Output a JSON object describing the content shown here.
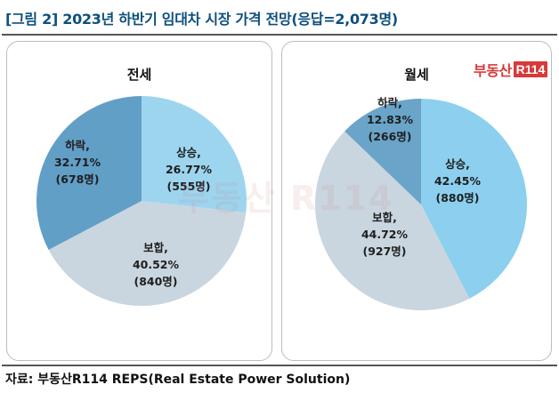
{
  "figure": {
    "title": "[그림 2] 2023년 하반기 임대차 시장 가격 전망(응답=2,073명)",
    "source": "자료: 부동산R114 REPS(Real Estate Power Solution)",
    "logo_text": "부동산",
    "logo_box": "R114",
    "watermark": "부동산 R114"
  },
  "chart_data": [
    {
      "type": "pie",
      "title": "전세",
      "start_angle_deg": 0,
      "slices": [
        {
          "label": "상승,",
          "pct": "26.77%",
          "count": "(555명)",
          "value": 26.77,
          "color": "#9dd5ef"
        },
        {
          "label": "보합,",
          "pct": "40.52%",
          "count": "(840명)",
          "value": 40.52,
          "color": "#c9d6df"
        },
        {
          "label": "하락,",
          "pct": "32.71%",
          "count": "(678명)",
          "value": 32.71,
          "color": "#629fc6"
        }
      ]
    },
    {
      "type": "pie",
      "title": "월세",
      "start_angle_deg": 0,
      "slices": [
        {
          "label": "상승,",
          "pct": "42.45%",
          "count": "(880명)",
          "value": 42.45,
          "color": "#8ccfee"
        },
        {
          "label": "보합,",
          "pct": "44.72%",
          "count": "(927명)",
          "value": 44.72,
          "color": "#c9d6df"
        },
        {
          "label": "하락,",
          "pct": "12.83%",
          "count": "(266명)",
          "value": 12.83,
          "color": "#6aa4c9"
        }
      ]
    }
  ]
}
